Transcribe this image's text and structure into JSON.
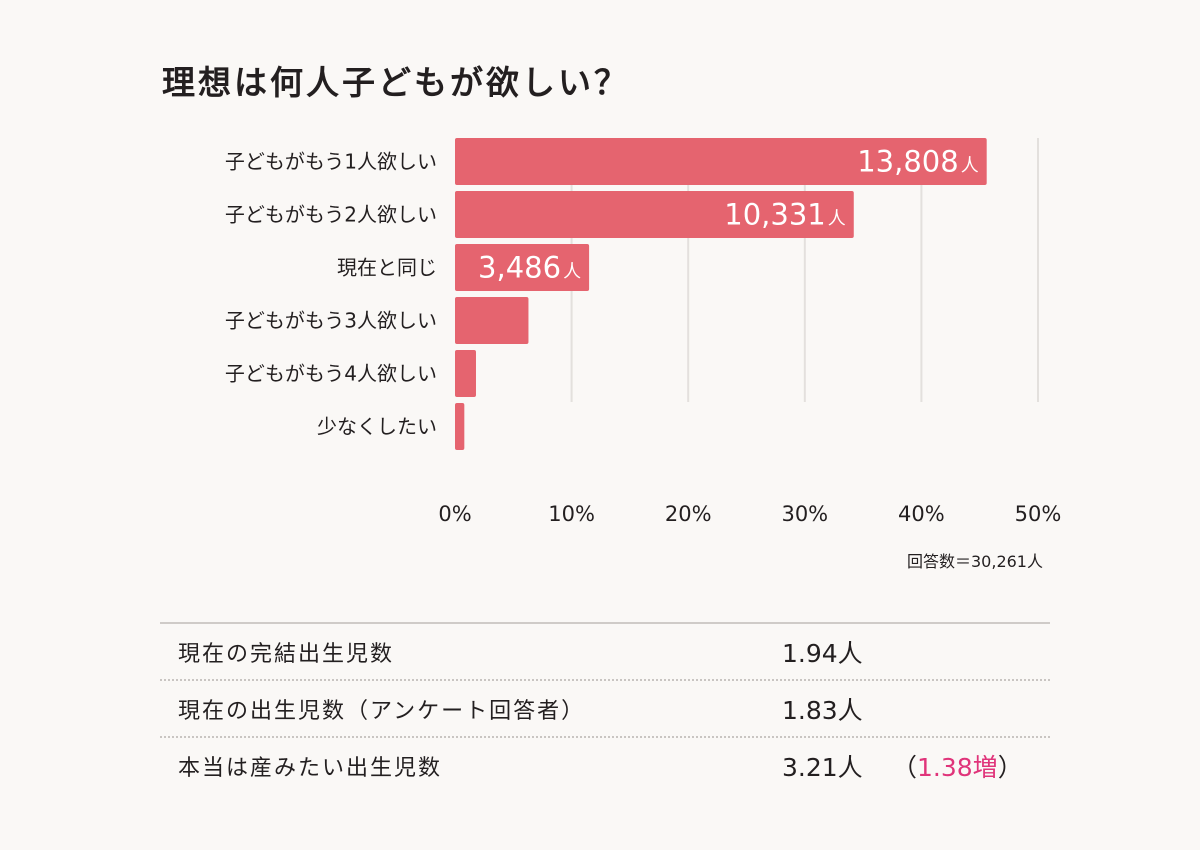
{
  "title": "理想は何人子どもが欲しい？",
  "chart_data": {
    "type": "bar",
    "orientation": "horizontal",
    "categories": [
      "子どもがもう1人欲しい",
      "子どもがもう2人欲しい",
      "現在と同じ",
      "子どもがもう3人欲しい",
      "子どもがもう4人欲しい",
      "少なくしたい"
    ],
    "values": [
      45.6,
      34.2,
      11.5,
      6.3,
      1.8,
      0.8
    ],
    "value_labels": [
      "13,808",
      "10,331",
      "3,486",
      "",
      "",
      ""
    ],
    "value_unit": "人",
    "xlim": [
      0,
      50
    ],
    "xticks": [
      0,
      10,
      20,
      30,
      40,
      50
    ],
    "xtick_labels": [
      "0%",
      "10%",
      "20%",
      "30%",
      "40%",
      "50%"
    ],
    "grid": true,
    "bar_color": "#e5646f",
    "note": "回答数＝30,261人"
  },
  "summary": [
    {
      "label": "現在の完結出生児数",
      "value": "1.94人",
      "paren_open": "",
      "extra": "",
      "paren_close": ""
    },
    {
      "label": "現在の出生児数（アンケート回答者）",
      "value": "1.83人",
      "paren_open": "",
      "extra": "",
      "paren_close": ""
    },
    {
      "label": "本当は産みたい出生児数",
      "value": "3.21人",
      "paren_open": "（",
      "extra": "1.38増",
      "paren_close": "）"
    }
  ]
}
